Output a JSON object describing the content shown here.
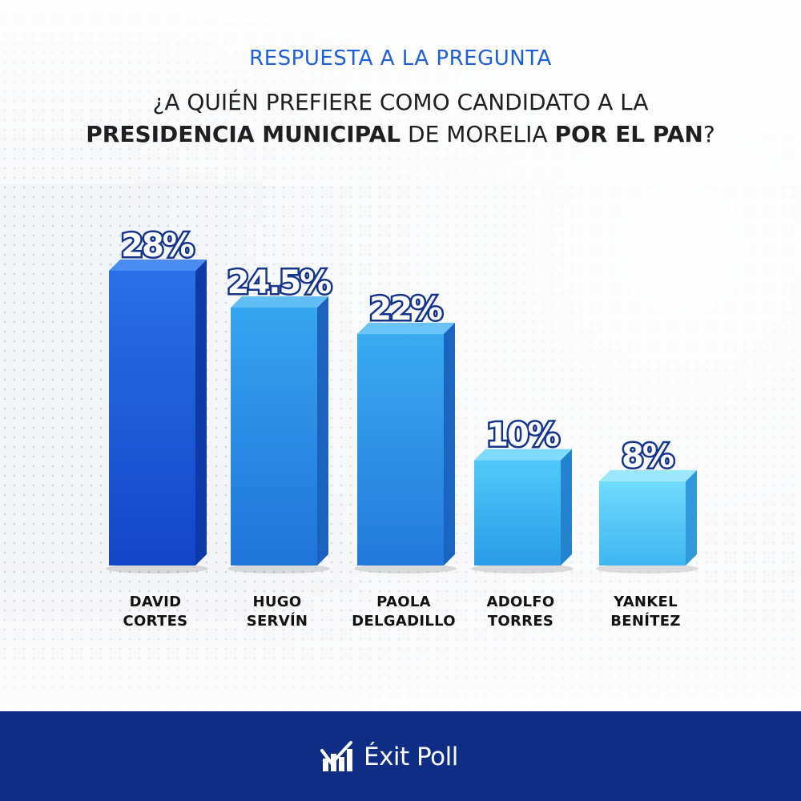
{
  "header": {
    "subtitle": "RESPUESTA A LA PREGUNTA",
    "question_line1": "¿A QUIÉN PREFIERE COMO CANDIDATO A LA",
    "question_line2": {
      "part1": "PRESIDENCIA MUNICIPAL",
      "part2": " DE MORELIA ",
      "part3": "POR EL PAN",
      "part4": "?"
    }
  },
  "chart_data": {
    "type": "bar",
    "categories": [
      "DAVID CORTES",
      "HUGO SERVÍN",
      "PAOLA DELGADILLO",
      "ADOLFO TORRES",
      "YANKEL BENÍTEZ"
    ],
    "category_lines": [
      [
        "DAVID",
        "CORTES"
      ],
      [
        "HUGO",
        "SERVÍN"
      ],
      [
        "PAOLA",
        "DELGADILLO"
      ],
      [
        "ADOLFO",
        "TORRES"
      ],
      [
        "YANKEL",
        "BENÍTEZ"
      ]
    ],
    "values": [
      28,
      24.5,
      22,
      10,
      8
    ],
    "value_labels": [
      "28%",
      "24.5%",
      "22%",
      "10%",
      "8%"
    ],
    "unit": "%",
    "title": "",
    "xlabel": "",
    "ylabel": "",
    "ylim": [
      0,
      28
    ],
    "grid": false,
    "legend": "none",
    "colors": [
      {
        "front_top": "#2b6fe6",
        "front_bottom": "#1346c7",
        "top": "#4a8cf2",
        "side": "#0f3aa6"
      },
      {
        "front_top": "#36a4f0",
        "front_bottom": "#1f74d8",
        "top": "#63bdf6",
        "side": "#1a62be"
      },
      {
        "front_top": "#3aaaf2",
        "front_bottom": "#2179da",
        "top": "#69c3f8",
        "side": "#1b65c2"
      },
      {
        "front_top": "#52c9f8",
        "front_bottom": "#2a9be6",
        "top": "#7fdbfb",
        "side": "#2283cf"
      },
      {
        "front_top": "#6fdafb",
        "front_bottom": "#3fb6ef",
        "top": "#9be8fd",
        "side": "#2e9ad9"
      }
    ]
  },
  "footer": {
    "brand": "Éxit Poll",
    "logo_icon": "exit-poll-logo-icon",
    "background": "#0e2d85"
  }
}
